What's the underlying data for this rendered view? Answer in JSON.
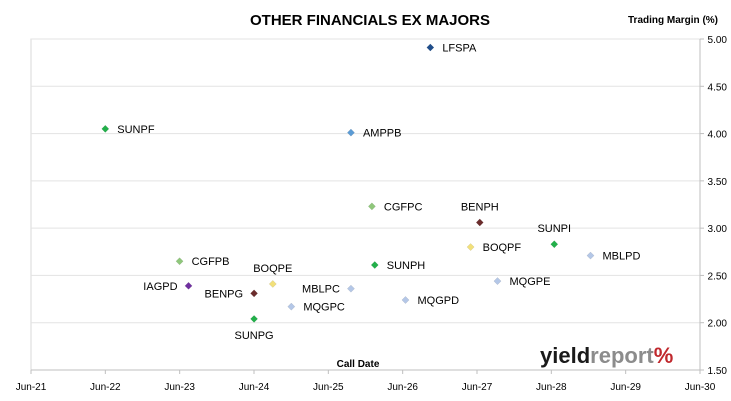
{
  "chart_data": {
    "type": "scatter",
    "title": "OTHER FINANCIALS EX MAJORS",
    "ylabel": "Trading Margin (%)",
    "xlabel": "Call Date",
    "ylim": [
      1.5,
      5.0
    ],
    "yticks": [
      "1.50",
      "2.00",
      "2.50",
      "3.00",
      "3.50",
      "4.00",
      "4.50",
      "5.00"
    ],
    "xticks": [
      "Jun-21",
      "Jun-22",
      "Jun-23",
      "Jun-24",
      "Jun-25",
      "Jun-26",
      "Jun-27",
      "Jun-28",
      "Jun-29",
      "Jun-30"
    ],
    "x_axis_start": "2021-06-01",
    "x_axis_end": "2030-06-01",
    "y_axis_side": "right",
    "grid": "horizontal",
    "points": [
      {
        "label": "LFSPA",
        "x": "2026-10-15",
        "y": 4.91,
        "color": "#1f4e8c",
        "label_pos": "right"
      },
      {
        "label": "SUNPF",
        "x": "2022-06-01",
        "y": 4.05,
        "color": "#22b04a",
        "label_pos": "right"
      },
      {
        "label": "AMPPB",
        "x": "2025-09-20",
        "y": 4.01,
        "color": "#5b9bd5",
        "label_pos": "right"
      },
      {
        "label": "CGFPC",
        "x": "2026-01-01",
        "y": 3.23,
        "color": "#8fc77b",
        "label_pos": "right"
      },
      {
        "label": "BENPH",
        "x": "2027-06-15",
        "y": 3.06,
        "color": "#6b2c2c",
        "label_pos": "above"
      },
      {
        "label": "SUNPI",
        "x": "2028-06-15",
        "y": 2.83,
        "color": "#22b04a",
        "label_pos": "above"
      },
      {
        "label": "BOQPF",
        "x": "2027-05-01",
        "y": 2.8,
        "color": "#f2e07a",
        "label_pos": "right"
      },
      {
        "label": "MBLPD",
        "x": "2028-12-10",
        "y": 2.71,
        "color": "#b4c7e7",
        "label_pos": "right"
      },
      {
        "label": "CGFPB",
        "x": "2023-06-01",
        "y": 2.65,
        "color": "#8fc77b",
        "label_pos": "right"
      },
      {
        "label": "SUNPH",
        "x": "2026-01-15",
        "y": 2.61,
        "color": "#22b04a",
        "label_pos": "right"
      },
      {
        "label": "MQGPE",
        "x": "2027-09-10",
        "y": 2.44,
        "color": "#b4c7e7",
        "label_pos": "right"
      },
      {
        "label": "BOQPE",
        "x": "2024-09-01",
        "y": 2.41,
        "color": "#f2e07a",
        "label_pos": "above"
      },
      {
        "label": "IAGPD",
        "x": "2023-07-15",
        "y": 2.39,
        "color": "#7030a0",
        "label_pos": "left"
      },
      {
        "label": "MBLPC",
        "x": "2025-09-20",
        "y": 2.36,
        "color": "#b4c7e7",
        "label_pos": "left"
      },
      {
        "label": "BENPG",
        "x": "2024-06-01",
        "y": 2.31,
        "color": "#6b2c2c",
        "label_pos": "left"
      },
      {
        "label": "MQGPD",
        "x": "2026-06-15",
        "y": 2.24,
        "color": "#b4c7e7",
        "label_pos": "right"
      },
      {
        "label": "MQGPC",
        "x": "2024-12-01",
        "y": 2.17,
        "color": "#b4c7e7",
        "label_pos": "right"
      },
      {
        "label": "SUNPG",
        "x": "2024-06-01",
        "y": 2.04,
        "color": "#22b04a",
        "label_pos": "below"
      }
    ]
  },
  "logo": {
    "part1": "yield",
    "part2": "report",
    "part3": "%"
  }
}
